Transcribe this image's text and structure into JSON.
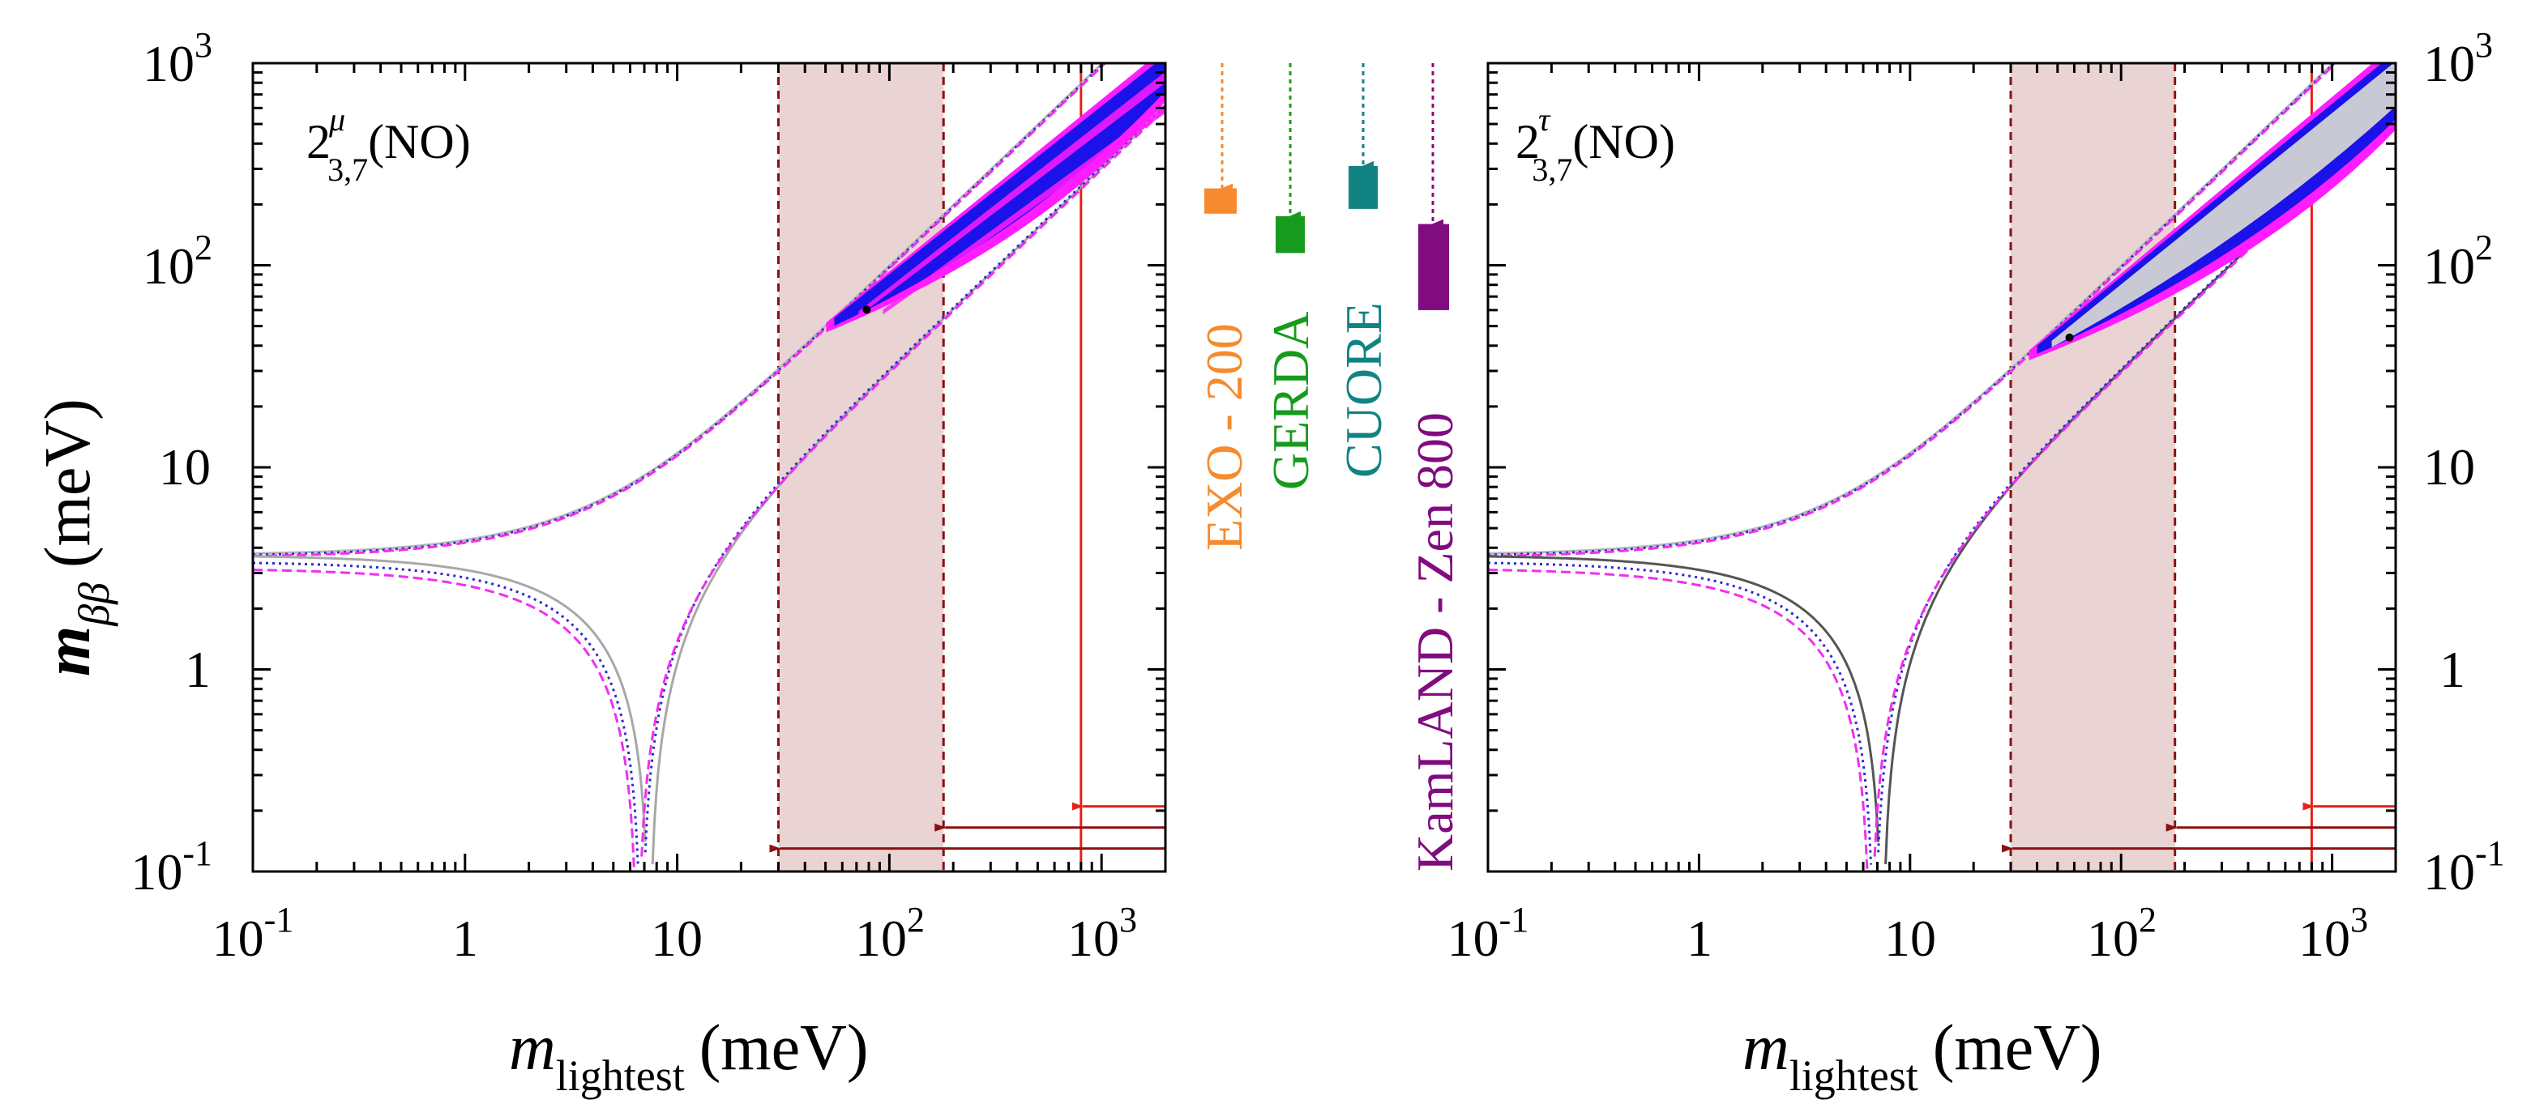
{
  "chart_data": [
    {
      "type": "line",
      "panel": "left",
      "title_main": "2",
      "title_sup": "μ",
      "title_sub": "3,7",
      "title_suffix": "(NO)",
      "xlabel": "m",
      "xlabel_sub": "lightest",
      "xlabel_unit": "(meV)",
      "ylabel": "m",
      "ylabel_sub": "ββ",
      "ylabel_unit": "(meV)",
      "xscale": "log",
      "yscale": "log",
      "xlim": [
        0.1,
        2000
      ],
      "ylim": [
        0.1,
        1000
      ],
      "x_ticks": [
        {
          "value": 0.1,
          "base": "10",
          "exp": "-1"
        },
        {
          "value": 1,
          "label": "1"
        },
        {
          "value": 10,
          "label": "10"
        },
        {
          "value": 100,
          "base": "10",
          "exp": "2"
        },
        {
          "value": 1000,
          "base": "10",
          "exp": "3"
        }
      ],
      "y_ticks": [
        {
          "value": 0.1,
          "base": "10",
          "exp": "-1"
        },
        {
          "value": 1,
          "label": "1"
        },
        {
          "value": 10,
          "label": "10"
        },
        {
          "value": 100,
          "base": "10",
          "exp": "2"
        },
        {
          "value": 1000,
          "base": "10",
          "exp": "3"
        }
      ],
      "shaded_band": {
        "x": [
          30,
          180
        ],
        "color": "#e9d3d3"
      },
      "vline": {
        "x": 800,
        "color": "#e8201a"
      },
      "arrows": [
        {
          "y": 0.21,
          "from_x": 2000,
          "to_x": 800,
          "color": "#e8201a"
        },
        {
          "y": 0.165,
          "from_x": 2000,
          "to_x": 180,
          "color": "#8b1010"
        },
        {
          "y": 0.13,
          "from_x": 2000,
          "to_x": 30,
          "color": "#8b1010"
        }
      ],
      "region": {
        "x_start": 55,
        "y_start": 55,
        "x_end": 2000,
        "y_upper_end": 1050,
        "y_lower_end": 950,
        "style": "filled-blue"
      }
    },
    {
      "type": "line",
      "panel": "right",
      "title_main": "2",
      "title_sup": "τ",
      "title_sub": "3,7",
      "title_suffix": "(NO)",
      "xlabel": "m",
      "xlabel_sub": "lightest",
      "xlabel_unit": "(meV)",
      "xscale": "log",
      "yscale": "log",
      "xlim": [
        0.1,
        2000
      ],
      "ylim": [
        0.1,
        1000
      ],
      "x_ticks": [
        {
          "value": 0.1,
          "base": "10",
          "exp": "-1"
        },
        {
          "value": 1,
          "label": "1"
        },
        {
          "value": 10,
          "label": "10"
        },
        {
          "value": 100,
          "base": "10",
          "exp": "2"
        },
        {
          "value": 1000,
          "base": "10",
          "exp": "3"
        }
      ],
      "y_ticks": [
        {
          "value": 0.1,
          "base": "10",
          "exp": "-1"
        },
        {
          "value": 1,
          "label": "1"
        },
        {
          "value": 10,
          "label": "10"
        },
        {
          "value": 100,
          "base": "10",
          "exp": "2"
        },
        {
          "value": 1000,
          "base": "10",
          "exp": "3"
        }
      ],
      "shaded_band": {
        "x": [
          30,
          180
        ],
        "color": "#e9d3d3"
      },
      "vline": {
        "x": 800,
        "color": "#e8201a"
      },
      "arrows": [
        {
          "y": 0.21,
          "from_x": 2000,
          "to_x": 800,
          "color": "#e8201a"
        },
        {
          "y": 0.165,
          "from_x": 2000,
          "to_x": 180,
          "color": "#8b1010"
        },
        {
          "y": 0.13,
          "from_x": 2000,
          "to_x": 30,
          "color": "#8b1010"
        }
      ],
      "region": {
        "x_start": 40,
        "y_start": 40,
        "x_end": 2000,
        "y_upper_end": 1100,
        "y_lower_end": 680,
        "style": "hollow-band"
      }
    }
  ],
  "experiments": [
    {
      "name": "EXO - 200",
      "color": "#f58a2e",
      "top": 240,
      "bottom": 180
    },
    {
      "name": "GERDA",
      "color": "#179b1e",
      "top": 175,
      "bottom": 115
    },
    {
      "name": "CUORE",
      "color": "#128383",
      "top": 310,
      "bottom": 190
    },
    {
      "name": "KamLAND - Zen 800",
      "color": "#800c80",
      "top": 160,
      "bottom": 60
    }
  ],
  "colors": {
    "blue": "#1a12e8",
    "magenta": "#ff1dff",
    "gray": "#a8a8a8",
    "dark_gray": "#555555",
    "blue_dotted": "#2b2bd1",
    "magenta_dashed": "#f12ef1"
  }
}
